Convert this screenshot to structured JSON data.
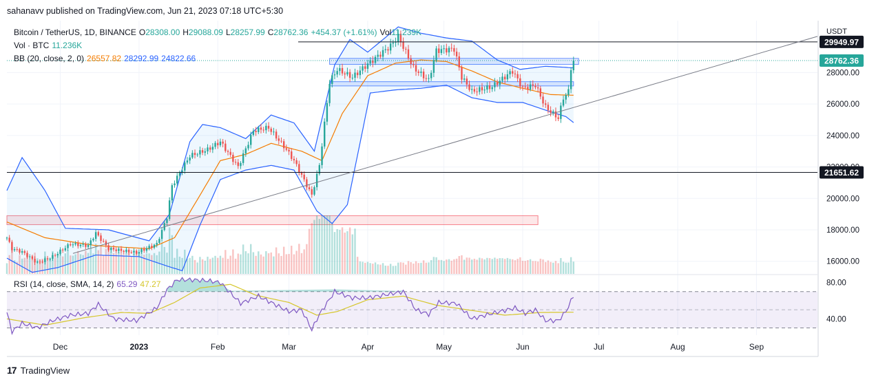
{
  "header": {
    "published": "sahanavv published on TradingView.com, Jun 21, 2023 07:18 UTC+5:30"
  },
  "legend": {
    "symbol": "Bitcoin / TetherUS, 1D, BINANCE",
    "o_label": "O",
    "o": "28308.00",
    "h_label": "H",
    "h": "29088.09",
    "l_label": "L",
    "l": "28257.99",
    "c_label": "C",
    "c": "28762.36",
    "change": "+454.37 (+1.61%)",
    "vol_label": "Vol",
    "vol": "11.239K",
    "vol_btc_label": "Vol · BTC",
    "vol_btc": "11.236K",
    "bb_label": "BB (20, close, 2, 0)",
    "bb_basis": "26557.82",
    "bb_upper": "28292.99",
    "bb_lower": "24822.66",
    "rsi_label": "RSI (14, close, SMA, 14, 2)",
    "rsi": "65.29",
    "rsi_ma": "47.27"
  },
  "footer": {
    "brand": "TradingView",
    "logo": "17"
  },
  "colors": {
    "up": "#26a69a",
    "down": "#ef5350",
    "bb": "#2962ff",
    "basis": "#f57c00",
    "rsi": "#7e57c2",
    "rsi_ma": "#d5c62a"
  },
  "chart_data": [
    {
      "type": "candlestick",
      "title": "Bitcoin / TetherUS, 1D, BINANCE",
      "yaxis_unit": "USDT",
      "yticks": [
        "28000.00",
        "26000.00",
        "24000.00",
        "22000.00",
        "20000.00",
        "18000.00",
        "16000.00"
      ],
      "ylim": [
        15200,
        31300
      ],
      "x_labels": [
        "Dec",
        "2023",
        "Feb",
        "Mar",
        "Apr",
        "May",
        "Jun",
        "Jul",
        "Aug",
        "Sep"
      ],
      "x_label_dates": [
        "2022-12-01",
        "2023-01-01",
        "2023-02-01",
        "2023-03-01",
        "2023-04-01",
        "2023-05-01",
        "2023-06-01",
        "2023-07-01",
        "2023-08-01",
        "2023-09-01"
      ],
      "xlim": [
        "2022-11-10",
        "2023-09-25"
      ],
      "price_labels": [
        {
          "value": 29949.97,
          "text": "29949.97",
          "style": "dark"
        },
        {
          "value": 28762.36,
          "text": "28762.36",
          "style": "last"
        },
        {
          "value": 21651.62,
          "text": "21651.62",
          "style": "dark"
        }
      ],
      "horizontal_lines": [
        29949.97,
        21651.62
      ],
      "trendline": {
        "from": {
          "date": "2022-12-06",
          "value": 16500
        },
        "to": {
          "date": "2023-09-25",
          "value": 30300
        }
      },
      "zones": [
        {
          "from": "2023-03-17",
          "to": "2023-06-23",
          "low": 28520,
          "high": 28900,
          "color": "blue"
        },
        {
          "from": "2023-03-17",
          "to": "2023-06-21",
          "low": 27150,
          "high": 27420,
          "color": "blue"
        },
        {
          "from": "2022-11-10",
          "to": "2023-06-07",
          "low": 18330,
          "high": 18900,
          "color": "pink"
        }
      ],
      "series_anchors": {
        "close": [
          [
            "2022-11-10",
            17500
          ],
          [
            "2022-11-12",
            16800
          ],
          [
            "2022-11-16",
            16600
          ],
          [
            "2022-11-22",
            15900
          ],
          [
            "2022-11-28",
            16300
          ],
          [
            "2022-12-05",
            17100
          ],
          [
            "2022-12-12",
            17000
          ],
          [
            "2022-12-15",
            17800
          ],
          [
            "2022-12-20",
            16800
          ],
          [
            "2022-12-31",
            16550
          ],
          [
            "2023-01-08",
            17100
          ],
          [
            "2023-01-12",
            18800
          ],
          [
            "2023-01-14",
            20800
          ],
          [
            "2023-01-21",
            22700
          ],
          [
            "2023-01-28",
            23100
          ],
          [
            "2023-02-02",
            23600
          ],
          [
            "2023-02-09",
            22000
          ],
          [
            "2023-02-15",
            24300
          ],
          [
            "2023-02-21",
            24500
          ],
          [
            "2023-02-28",
            23100
          ],
          [
            "2023-03-03",
            22400
          ],
          [
            "2023-03-10",
            20200
          ],
          [
            "2023-03-13",
            22100
          ],
          [
            "2023-03-17",
            27400
          ],
          [
            "2023-03-20",
            28200
          ],
          [
            "2023-03-26",
            27700
          ],
          [
            "2023-03-31",
            28400
          ],
          [
            "2023-04-10",
            29700
          ],
          [
            "2023-04-13",
            30300
          ],
          [
            "2023-04-19",
            28300
          ],
          [
            "2023-04-25",
            27500
          ],
          [
            "2023-04-28",
            29400
          ],
          [
            "2023-05-05",
            29500
          ],
          [
            "2023-05-08",
            27700
          ],
          [
            "2023-05-12",
            26800
          ],
          [
            "2023-05-20",
            27100
          ],
          [
            "2023-05-28",
            28100
          ],
          [
            "2023-06-01",
            27000
          ],
          [
            "2023-06-06",
            27200
          ],
          [
            "2023-06-10",
            25800
          ],
          [
            "2023-06-15",
            25100
          ],
          [
            "2023-06-17",
            26400
          ],
          [
            "2023-06-19",
            26800
          ],
          [
            "2023-06-20",
            28300
          ],
          [
            "2023-06-21",
            28762
          ]
        ],
        "bb_upper": [
          [
            "2022-11-10",
            20500
          ],
          [
            "2022-11-16",
            22600
          ],
          [
            "2022-11-25",
            20500
          ],
          [
            "2022-12-03",
            18100
          ],
          [
            "2022-12-20",
            18000
          ],
          [
            "2023-01-05",
            17300
          ],
          [
            "2023-01-13",
            19000
          ],
          [
            "2023-01-21",
            23600
          ],
          [
            "2023-01-26",
            24700
          ],
          [
            "2023-02-02",
            24500
          ],
          [
            "2023-02-12",
            23800
          ],
          [
            "2023-02-22",
            25300
          ],
          [
            "2023-03-03",
            24800
          ],
          [
            "2023-03-11",
            23000
          ],
          [
            "2023-03-19",
            28500
          ],
          [
            "2023-03-25",
            30100
          ],
          [
            "2023-04-01",
            29300
          ],
          [
            "2023-04-13",
            30900
          ],
          [
            "2023-04-22",
            30500
          ],
          [
            "2023-05-02",
            30200
          ],
          [
            "2023-05-12",
            30000
          ],
          [
            "2023-05-22",
            28800
          ],
          [
            "2023-05-31",
            28200
          ],
          [
            "2023-06-10",
            28400
          ],
          [
            "2023-06-21",
            28300
          ]
        ],
        "bb_lower": [
          [
            "2022-11-10",
            16200
          ],
          [
            "2022-11-20",
            15300
          ],
          [
            "2022-11-30",
            15600
          ],
          [
            "2022-12-15",
            16400
          ],
          [
            "2023-01-01",
            16300
          ],
          [
            "2023-01-12",
            15700
          ],
          [
            "2023-01-18",
            15400
          ],
          [
            "2023-01-25",
            18300
          ],
          [
            "2023-02-02",
            21200
          ],
          [
            "2023-02-12",
            21800
          ],
          [
            "2023-02-22",
            22100
          ],
          [
            "2023-03-03",
            21800
          ],
          [
            "2023-03-12",
            19200
          ],
          [
            "2023-03-18",
            18400
          ],
          [
            "2023-03-24",
            19600
          ],
          [
            "2023-04-02",
            26700
          ],
          [
            "2023-04-12",
            26900
          ],
          [
            "2023-04-22",
            27000
          ],
          [
            "2023-05-02",
            27200
          ],
          [
            "2023-05-12",
            26400
          ],
          [
            "2023-05-22",
            26100
          ],
          [
            "2023-06-01",
            26100
          ],
          [
            "2023-06-12",
            25500
          ],
          [
            "2023-06-18",
            25200
          ],
          [
            "2023-06-21",
            24822
          ]
        ],
        "bb_basis": [
          [
            "2022-11-10",
            18500
          ],
          [
            "2022-11-25",
            17500
          ],
          [
            "2022-12-15",
            17000
          ],
          [
            "2023-01-05",
            16800
          ],
          [
            "2023-01-15",
            17500
          ],
          [
            "2023-01-25",
            20200
          ],
          [
            "2023-02-02",
            22400
          ],
          [
            "2023-02-12",
            22800
          ],
          [
            "2023-02-22",
            23500
          ],
          [
            "2023-03-06",
            23000
          ],
          [
            "2023-03-14",
            22400
          ],
          [
            "2023-03-22",
            25400
          ],
          [
            "2023-04-01",
            27800
          ],
          [
            "2023-04-12",
            28600
          ],
          [
            "2023-04-22",
            28800
          ],
          [
            "2023-05-02",
            28700
          ],
          [
            "2023-05-12",
            28100
          ],
          [
            "2023-05-22",
            27400
          ],
          [
            "2023-06-01",
            27000
          ],
          [
            "2023-06-12",
            26600
          ],
          [
            "2023-06-21",
            26558
          ]
        ]
      }
    },
    {
      "type": "line",
      "title": "RSI (14, close, SMA, 14, 2)",
      "yticks": [
        "80.00",
        "40.00"
      ],
      "ylim": [
        22,
        88
      ],
      "band": [
        30,
        70
      ],
      "series": [
        {
          "name": "RSI",
          "points": [
            [
              "2022-11-10",
              47
            ],
            [
              "2022-11-12",
              26
            ],
            [
              "2022-11-16",
              35
            ],
            [
              "2022-11-22",
              30
            ],
            [
              "2022-11-28",
              38
            ],
            [
              "2022-12-05",
              44
            ],
            [
              "2022-12-12",
              46
            ],
            [
              "2022-12-16",
              56
            ],
            [
              "2022-12-22",
              40
            ],
            [
              "2022-12-31",
              38
            ],
            [
              "2023-01-08",
              52
            ],
            [
              "2023-01-12",
              72
            ],
            [
              "2023-01-16",
              83
            ],
            [
              "2023-01-22",
              83
            ],
            [
              "2023-01-28",
              82
            ],
            [
              "2023-02-02",
              80
            ],
            [
              "2023-02-10",
              57
            ],
            [
              "2023-02-17",
              65
            ],
            [
              "2023-02-22",
              58
            ],
            [
              "2023-03-01",
              48
            ],
            [
              "2023-03-06",
              50
            ],
            [
              "2023-03-10",
              28
            ],
            [
              "2023-03-13",
              45
            ],
            [
              "2023-03-19",
              70
            ],
            [
              "2023-03-26",
              63
            ],
            [
              "2023-04-01",
              63
            ],
            [
              "2023-04-11",
              68
            ],
            [
              "2023-04-15",
              70
            ],
            [
              "2023-04-20",
              50
            ],
            [
              "2023-04-25",
              45
            ],
            [
              "2023-04-29",
              58
            ],
            [
              "2023-05-06",
              57
            ],
            [
              "2023-05-12",
              40
            ],
            [
              "2023-05-20",
              46
            ],
            [
              "2023-05-29",
              52
            ],
            [
              "2023-06-02",
              46
            ],
            [
              "2023-06-06",
              50
            ],
            [
              "2023-06-10",
              38
            ],
            [
              "2023-06-15",
              38
            ],
            [
              "2023-06-18",
              48
            ],
            [
              "2023-06-21",
              65.29
            ]
          ]
        },
        {
          "name": "RSI-based MA",
          "points": [
            [
              "2022-11-10",
              40
            ],
            [
              "2022-11-25",
              33
            ],
            [
              "2022-12-10",
              41
            ],
            [
              "2022-12-25",
              47
            ],
            [
              "2023-01-05",
              46
            ],
            [
              "2023-01-15",
              58
            ],
            [
              "2023-01-25",
              74
            ],
            [
              "2023-02-06",
              78
            ],
            [
              "2023-02-16",
              66
            ],
            [
              "2023-03-01",
              58
            ],
            [
              "2023-03-12",
              44
            ],
            [
              "2023-03-20",
              48
            ],
            [
              "2023-04-01",
              61
            ],
            [
              "2023-04-15",
              65
            ],
            [
              "2023-04-28",
              55
            ],
            [
              "2023-05-10",
              50
            ],
            [
              "2023-05-25",
              44
            ],
            [
              "2023-06-08",
              47
            ],
            [
              "2023-06-21",
              47.27
            ]
          ]
        }
      ]
    }
  ]
}
